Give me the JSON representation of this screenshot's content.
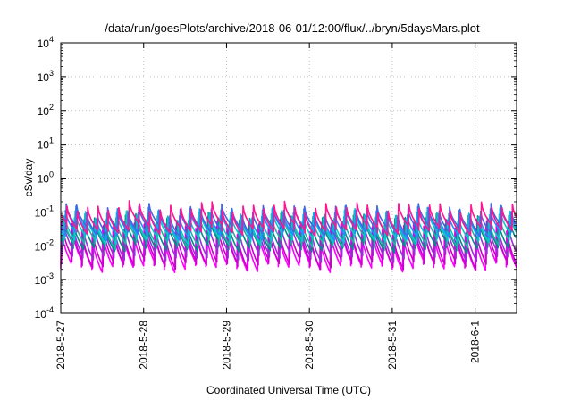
{
  "chart_data": {
    "type": "line",
    "title": "/data/run/goesPlots/archive/2018-06-01/12:00/flux/../bryn/5daysMars.plot",
    "xlabel": "Coordinated Universal Time (UTC)",
    "ylabel": "cSv/day",
    "y_scale": "log",
    "ylim": [
      0.0001,
      10000
    ],
    "xlim": [
      "2018-05-27T00:00",
      "2018-06-01T12:00"
    ],
    "grid": true,
    "legend": "none",
    "y_ticks": [
      {
        "mantissa": "10",
        "exp": "-4"
      },
      {
        "mantissa": "10",
        "exp": "-3"
      },
      {
        "mantissa": "10",
        "exp": "-2"
      },
      {
        "mantissa": "10",
        "exp": "-1"
      },
      {
        "mantissa": "10",
        "exp": "0"
      },
      {
        "mantissa": "10",
        "exp": "1"
      },
      {
        "mantissa": "10",
        "exp": "2"
      },
      {
        "mantissa": "10",
        "exp": "3"
      },
      {
        "mantissa": "10",
        "exp": "4"
      }
    ],
    "x_ticks": [
      "2018-5-27",
      "2018-5-28",
      "2018-5-29",
      "2018-5-30",
      "2018-5-31",
      "2018-6-1"
    ],
    "pulse_period_hours": 3,
    "series": [
      {
        "color": "#ff00ff",
        "peak": 0.03,
        "trough": 0.0025
      },
      {
        "color": "#cc00cc",
        "peak": 0.035,
        "trough": 0.003
      },
      {
        "color": "#9b30d9",
        "peak": 0.05,
        "trough": 0.005
      },
      {
        "color": "#008b8b",
        "peak": 0.06,
        "trough": 0.009
      },
      {
        "color": "#20b2aa",
        "peak": 0.07,
        "trough": 0.012
      },
      {
        "color": "#00cccc",
        "peak": 0.085,
        "trough": 0.016
      },
      {
        "color": "#1e90ff",
        "peak": 0.1,
        "trough": 0.022
      },
      {
        "color": "#4169e1",
        "peak": 0.12,
        "trough": 0.028
      },
      {
        "color": "#ff1493",
        "peak": 0.14,
        "trough": 0.03
      }
    ]
  }
}
